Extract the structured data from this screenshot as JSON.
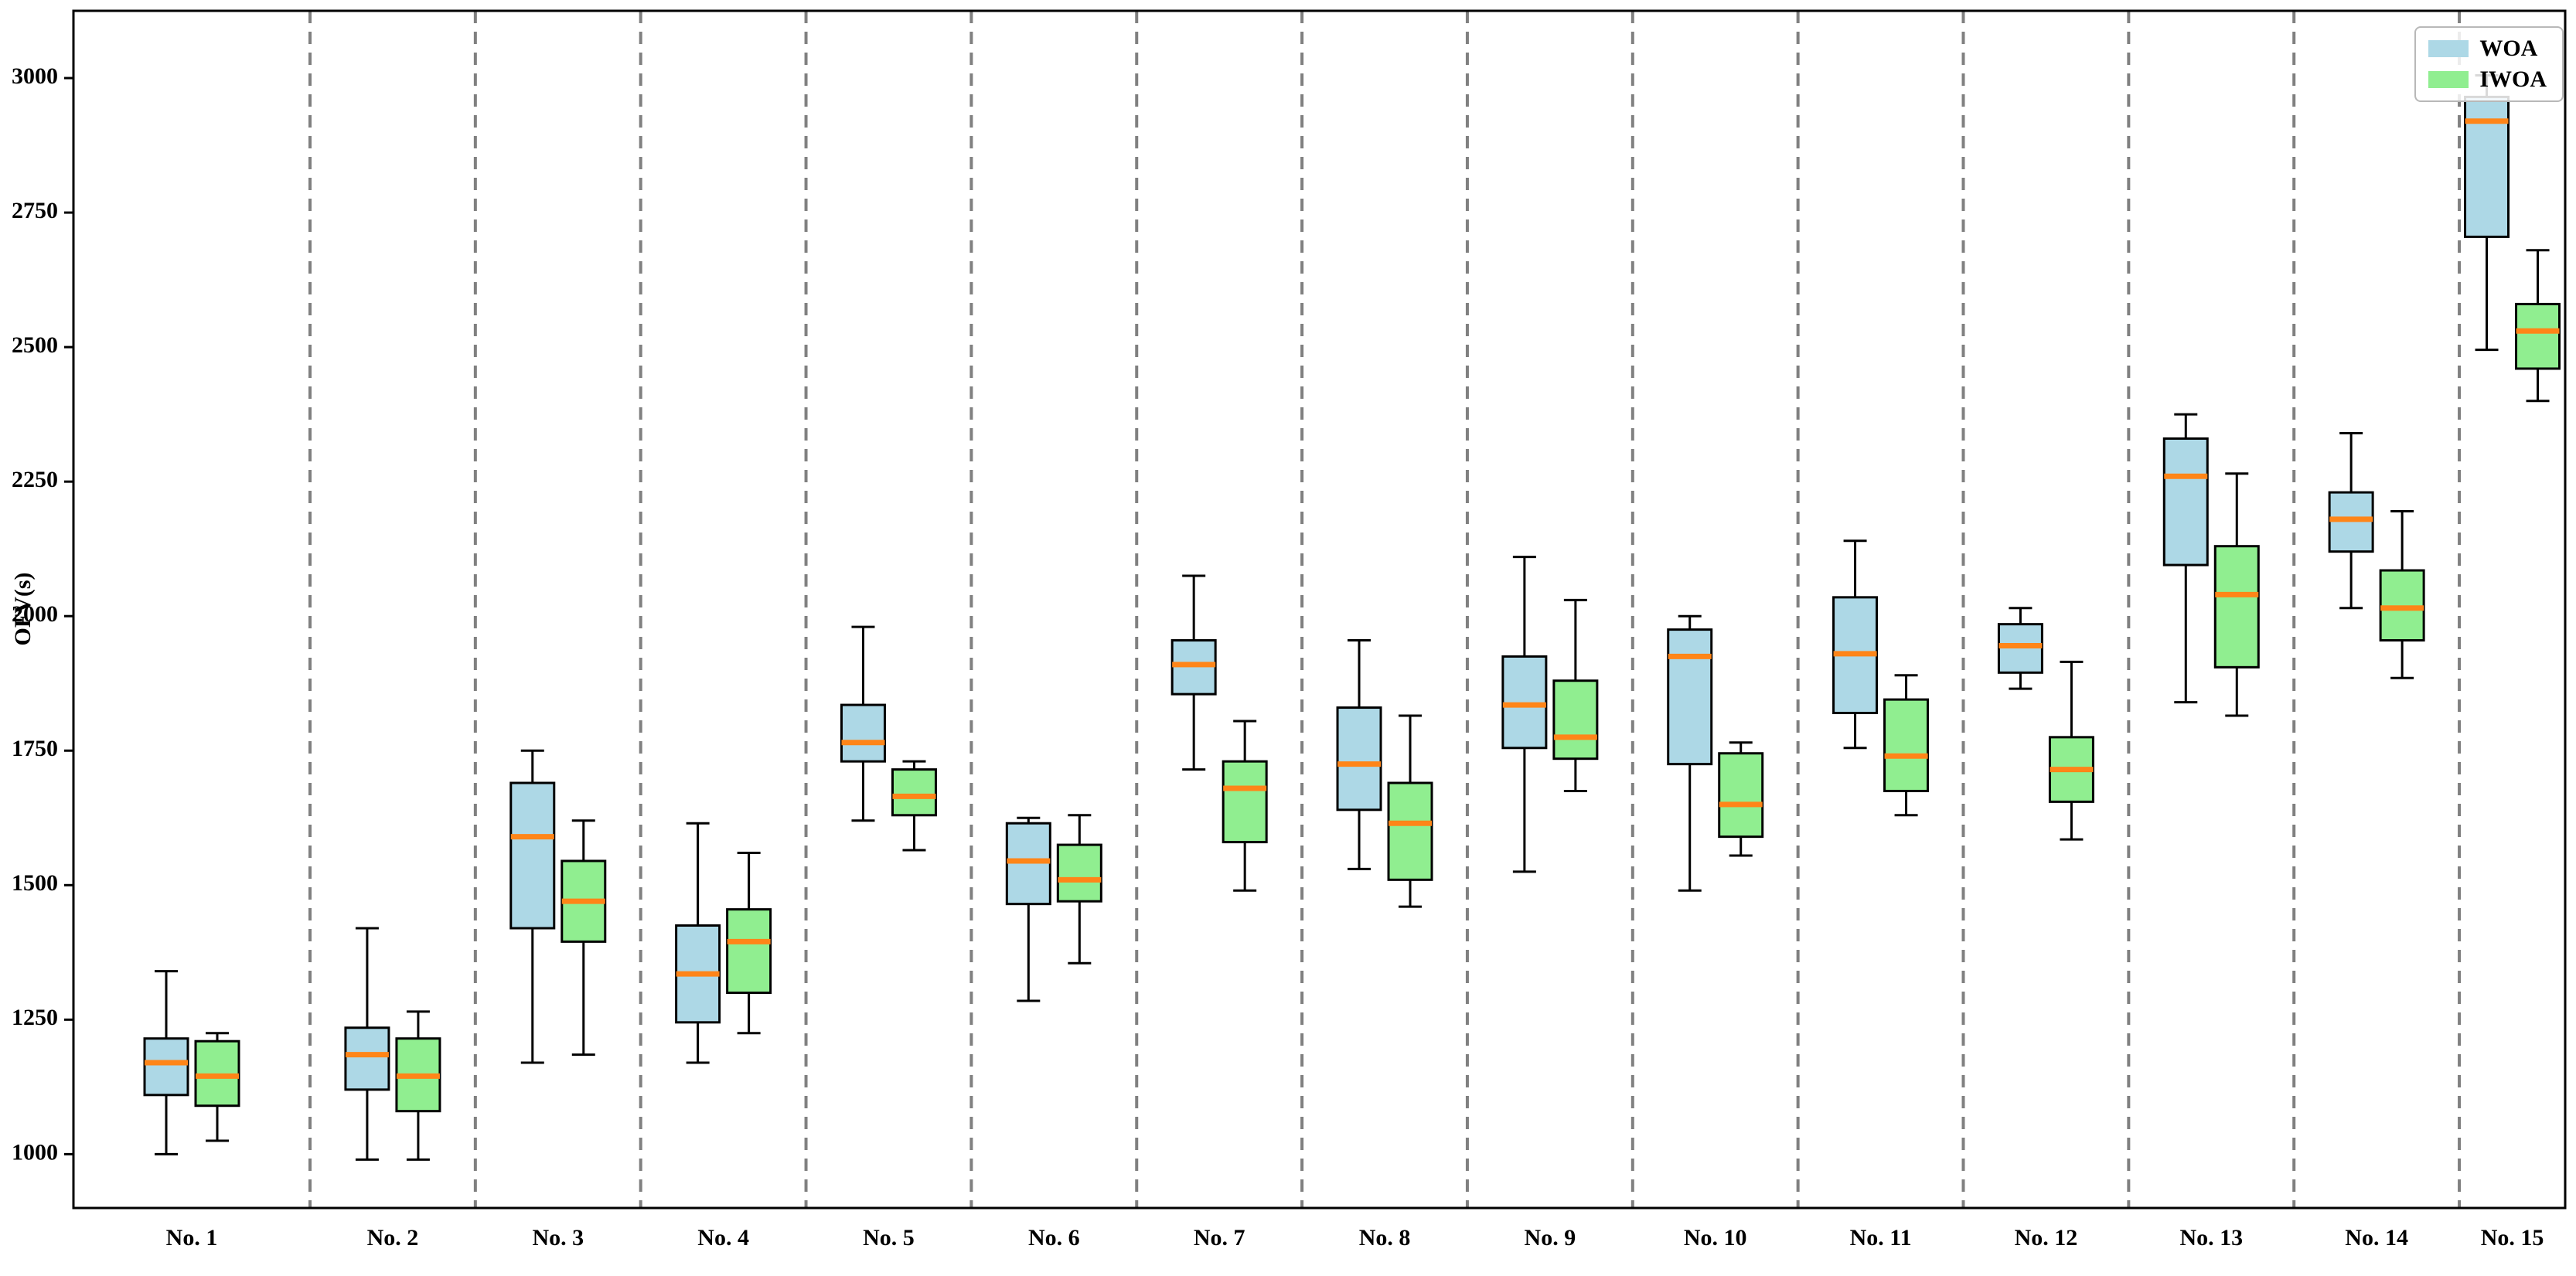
{
  "chart_data": {
    "type": "boxplot",
    "title": "",
    "ylabel": "OFV(s)",
    "xlabel": "",
    "categories": [
      "No. 1",
      "No. 2",
      "No. 3",
      "No. 4",
      "No. 5",
      "No. 6",
      "No. 7",
      "No. 8",
      "No. 9",
      "No. 10",
      "No. 11",
      "No. 12",
      "No. 13",
      "No. 14",
      "No. 15"
    ],
    "yticks": [
      1000,
      1250,
      1500,
      1750,
      2000,
      2250,
      2500,
      2750,
      3000
    ],
    "ylim": [
      900,
      3125
    ],
    "grid": "off",
    "legend_position": "upper right",
    "median_color": "#ff8518",
    "box_edge_color": "#000000",
    "separator_color": "#808080",
    "separator_style": "dashed",
    "series": [
      {
        "name": "WOA",
        "color": "#add8e6",
        "boxes": [
          {
            "low": 1000,
            "q1": 1110,
            "med": 1170,
            "q3": 1215,
            "high": 1340
          },
          {
            "low": 990,
            "q1": 1120,
            "med": 1185,
            "q3": 1235,
            "high": 1420
          },
          {
            "low": 1170,
            "q1": 1420,
            "med": 1590,
            "q3": 1690,
            "high": 1750
          },
          {
            "low": 1170,
            "q1": 1245,
            "med": 1335,
            "q3": 1425,
            "high": 1615
          },
          {
            "low": 1620,
            "q1": 1730,
            "med": 1765,
            "q3": 1835,
            "high": 1980
          },
          {
            "low": 1285,
            "q1": 1465,
            "med": 1545,
            "q3": 1615,
            "high": 1625
          },
          {
            "low": 1715,
            "q1": 1855,
            "med": 1910,
            "q3": 1955,
            "high": 2075
          },
          {
            "low": 1530,
            "q1": 1640,
            "med": 1725,
            "q3": 1830,
            "high": 1955
          },
          {
            "low": 1525,
            "q1": 1755,
            "med": 1835,
            "q3": 1925,
            "high": 2110
          },
          {
            "low": 1490,
            "q1": 1725,
            "med": 1925,
            "q3": 1975,
            "high": 2000
          },
          {
            "low": 1755,
            "q1": 1820,
            "med": 1930,
            "q3": 2035,
            "high": 2140
          },
          {
            "low": 1865,
            "q1": 1895,
            "med": 1945,
            "q3": 1985,
            "high": 2015
          },
          {
            "low": 1840,
            "q1": 2095,
            "med": 2260,
            "q3": 2330,
            "high": 2375
          },
          {
            "low": 2015,
            "q1": 2120,
            "med": 2180,
            "q3": 2230,
            "high": 2340
          },
          {
            "low": 2495,
            "q1": 2705,
            "med": 2920,
            "q3": 2965,
            "high": 3005
          }
        ]
      },
      {
        "name": "IWOA",
        "color": "#90ee90",
        "boxes": [
          {
            "low": 1025,
            "q1": 1090,
            "med": 1145,
            "q3": 1210,
            "high": 1225
          },
          {
            "low": 990,
            "q1": 1080,
            "med": 1145,
            "q3": 1215,
            "high": 1265
          },
          {
            "low": 1185,
            "q1": 1395,
            "med": 1470,
            "q3": 1545,
            "high": 1620
          },
          {
            "low": 1225,
            "q1": 1300,
            "med": 1395,
            "q3": 1455,
            "high": 1560
          },
          {
            "low": 1565,
            "q1": 1630,
            "med": 1665,
            "q3": 1715,
            "high": 1730
          },
          {
            "low": 1355,
            "q1": 1470,
            "med": 1510,
            "q3": 1575,
            "high": 1630
          },
          {
            "low": 1490,
            "q1": 1580,
            "med": 1680,
            "q3": 1730,
            "high": 1805
          },
          {
            "low": 1460,
            "q1": 1510,
            "med": 1615,
            "q3": 1690,
            "high": 1815
          },
          {
            "low": 1675,
            "q1": 1735,
            "med": 1775,
            "q3": 1880,
            "high": 2030
          },
          {
            "low": 1555,
            "q1": 1590,
            "med": 1650,
            "q3": 1745,
            "high": 1765
          },
          {
            "low": 1630,
            "q1": 1675,
            "med": 1740,
            "q3": 1845,
            "high": 1890
          },
          {
            "low": 1585,
            "q1": 1655,
            "med": 1715,
            "q3": 1775,
            "high": 1915
          },
          {
            "low": 1815,
            "q1": 1905,
            "med": 2040,
            "q3": 2130,
            "high": 2265
          },
          {
            "low": 1885,
            "q1": 1955,
            "med": 2015,
            "q3": 2085,
            "high": 2195
          },
          {
            "low": 2400,
            "q1": 2460,
            "med": 2530,
            "q3": 2580,
            "high": 2680
          }
        ]
      }
    ]
  }
}
